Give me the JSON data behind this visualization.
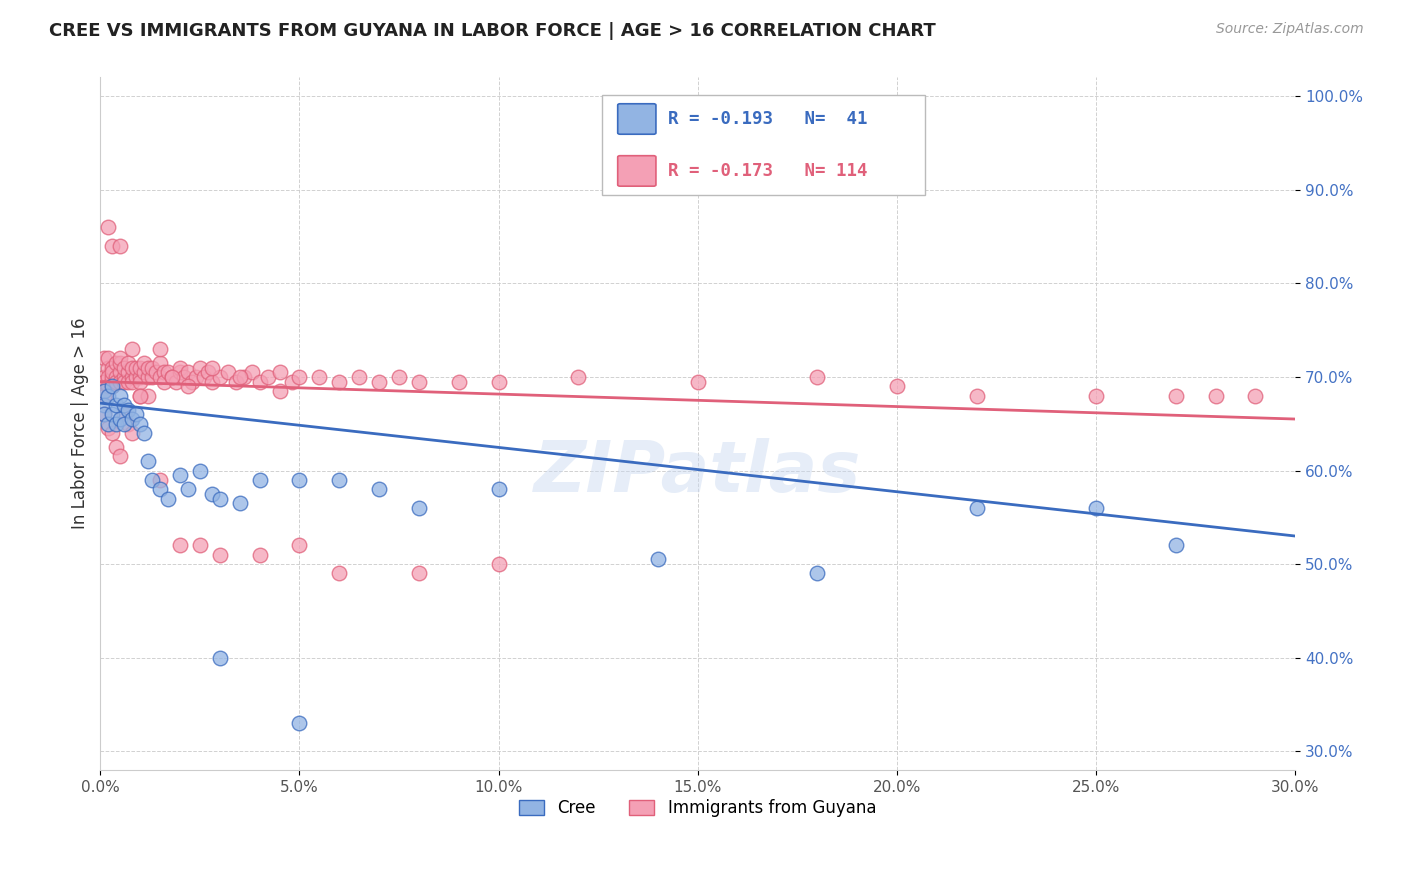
{
  "title": "CREE VS IMMIGRANTS FROM GUYANA IN LABOR FORCE | AGE > 16 CORRELATION CHART",
  "source": "Source: ZipAtlas.com",
  "xlim": [
    0.0,
    0.3
  ],
  "ylim": [
    0.28,
    1.02
  ],
  "R1": -0.193,
  "N1": 41,
  "R2": -0.173,
  "N2": 114,
  "color1": "#92b4e3",
  "color2": "#f4a0b5",
  "line_color1": "#3a6bbf",
  "line_color2": "#e0607a",
  "watermark": "ZIPatlas",
  "ylabel": "In Labor Force | Age > 16",
  "legend_label1": "Cree",
  "legend_label2": "Immigrants from Guyana",
  "cree_x": [
    0.001,
    0.001,
    0.001,
    0.002,
    0.002,
    0.003,
    0.003,
    0.004,
    0.004,
    0.005,
    0.005,
    0.006,
    0.006,
    0.007,
    0.008,
    0.009,
    0.01,
    0.011,
    0.012,
    0.013,
    0.015,
    0.017,
    0.02,
    0.022,
    0.025,
    0.028,
    0.03,
    0.035,
    0.04,
    0.05,
    0.06,
    0.07,
    0.08,
    0.1,
    0.14,
    0.18,
    0.22,
    0.25,
    0.27,
    0.03,
    0.05
  ],
  "cree_y": [
    0.685,
    0.67,
    0.66,
    0.68,
    0.65,
    0.69,
    0.66,
    0.67,
    0.65,
    0.68,
    0.655,
    0.67,
    0.65,
    0.665,
    0.655,
    0.66,
    0.65,
    0.64,
    0.61,
    0.59,
    0.58,
    0.57,
    0.595,
    0.58,
    0.6,
    0.575,
    0.57,
    0.565,
    0.59,
    0.59,
    0.59,
    0.58,
    0.56,
    0.58,
    0.505,
    0.49,
    0.56,
    0.56,
    0.52,
    0.4,
    0.33
  ],
  "guyana_x": [
    0.001,
    0.001,
    0.001,
    0.001,
    0.002,
    0.002,
    0.002,
    0.002,
    0.003,
    0.003,
    0.003,
    0.003,
    0.004,
    0.004,
    0.004,
    0.005,
    0.005,
    0.005,
    0.005,
    0.006,
    0.006,
    0.006,
    0.007,
    0.007,
    0.007,
    0.008,
    0.008,
    0.008,
    0.009,
    0.009,
    0.01,
    0.01,
    0.01,
    0.011,
    0.011,
    0.012,
    0.012,
    0.013,
    0.013,
    0.014,
    0.015,
    0.015,
    0.016,
    0.016,
    0.017,
    0.018,
    0.019,
    0.02,
    0.02,
    0.021,
    0.022,
    0.023,
    0.024,
    0.025,
    0.026,
    0.027,
    0.028,
    0.03,
    0.032,
    0.034,
    0.036,
    0.038,
    0.04,
    0.042,
    0.045,
    0.048,
    0.05,
    0.055,
    0.06,
    0.065,
    0.07,
    0.075,
    0.08,
    0.09,
    0.1,
    0.12,
    0.15,
    0.18,
    0.2,
    0.22,
    0.25,
    0.27,
    0.28,
    0.29,
    0.001,
    0.002,
    0.003,
    0.004,
    0.005,
    0.006,
    0.007,
    0.008,
    0.01,
    0.012,
    0.015,
    0.018,
    0.022,
    0.028,
    0.035,
    0.045,
    0.002,
    0.003,
    0.005,
    0.008,
    0.01,
    0.015,
    0.02,
    0.025,
    0.03,
    0.04,
    0.05,
    0.06,
    0.08,
    0.1
  ],
  "guyana_y": [
    0.7,
    0.72,
    0.68,
    0.695,
    0.71,
    0.7,
    0.69,
    0.72,
    0.7,
    0.71,
    0.69,
    0.705,
    0.7,
    0.715,
    0.695,
    0.705,
    0.715,
    0.695,
    0.72,
    0.7,
    0.71,
    0.695,
    0.705,
    0.715,
    0.695,
    0.7,
    0.71,
    0.695,
    0.7,
    0.71,
    0.7,
    0.71,
    0.695,
    0.705,
    0.715,
    0.7,
    0.71,
    0.7,
    0.71,
    0.705,
    0.7,
    0.715,
    0.705,
    0.695,
    0.705,
    0.7,
    0.695,
    0.705,
    0.71,
    0.7,
    0.705,
    0.695,
    0.7,
    0.71,
    0.7,
    0.705,
    0.695,
    0.7,
    0.705,
    0.695,
    0.7,
    0.705,
    0.695,
    0.7,
    0.705,
    0.695,
    0.7,
    0.7,
    0.695,
    0.7,
    0.695,
    0.7,
    0.695,
    0.695,
    0.695,
    0.7,
    0.695,
    0.7,
    0.69,
    0.68,
    0.68,
    0.68,
    0.68,
    0.68,
    0.66,
    0.645,
    0.64,
    0.625,
    0.615,
    0.66,
    0.65,
    0.64,
    0.68,
    0.68,
    0.73,
    0.7,
    0.69,
    0.71,
    0.7,
    0.685,
    0.86,
    0.84,
    0.84,
    0.73,
    0.68,
    0.59,
    0.52,
    0.52,
    0.51,
    0.51,
    0.52,
    0.49,
    0.49,
    0.5
  ]
}
